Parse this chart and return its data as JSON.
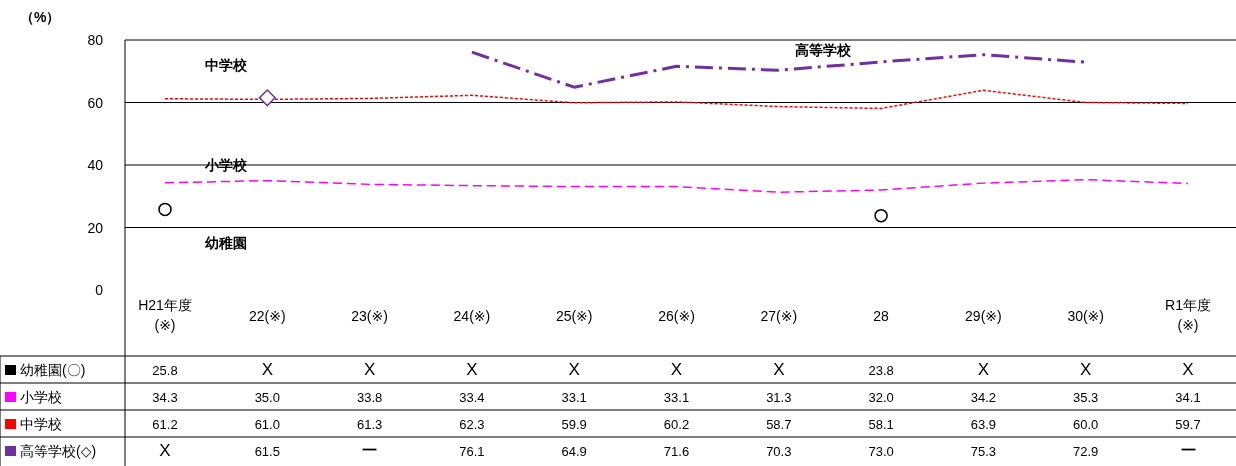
{
  "chart_data": {
    "type": "line",
    "ylabel": "（%）",
    "categories": [
      "H21年度\n(※)",
      "22(※)",
      "23(※)",
      "24(※)",
      "25(※)",
      "26(※)",
      "27(※)",
      "28",
      "29(※)",
      "30(※)",
      "R1年度\n(※)"
    ],
    "ylim": [
      0,
      80
    ],
    "yticks": [
      0,
      20,
      40,
      60,
      80
    ],
    "grid": "y",
    "legend": "bottom left",
    "series": [
      {
        "name": "幼稚園(〇)",
        "type": "scatter",
        "marker": "circle",
        "color": "#000000",
        "values": [
          25.8,
          null,
          null,
          null,
          null,
          null,
          null,
          23.8,
          null,
          null,
          null
        ],
        "value_labels": [
          "25.8",
          "X",
          "X",
          "X",
          "X",
          "X",
          "X",
          "23.8",
          "X",
          "X",
          "X"
        ]
      },
      {
        "name": "小学校",
        "line_style": "dashed",
        "color": "#ff00ff",
        "values": [
          34.3,
          35.0,
          33.8,
          33.4,
          33.1,
          33.1,
          31.3,
          32.0,
          34.2,
          35.3,
          34.1
        ],
        "value_labels": [
          "34.3",
          "35.0",
          "33.8",
          "33.4",
          "33.1",
          "33.1",
          "31.3",
          "32.0",
          "34.2",
          "35.3",
          "34.1"
        ]
      },
      {
        "name": "中学校",
        "line_style": "dotted",
        "color": "#ff0000",
        "values": [
          61.2,
          61.0,
          61.3,
          62.3,
          59.9,
          60.2,
          58.7,
          58.1,
          63.9,
          60.0,
          59.7
        ],
        "value_labels": [
          "61.2",
          "61.0",
          "61.3",
          "62.3",
          "59.9",
          "60.2",
          "58.7",
          "58.1",
          "63.9",
          "60.0",
          "59.7"
        ]
      },
      {
        "name": "高等学校(◇)",
        "line_style": "dashed",
        "color": "#7030a0",
        "values": [
          null,
          61.5,
          null,
          76.1,
          64.9,
          71.6,
          70.3,
          73.0,
          75.3,
          72.9,
          null
        ],
        "value_labels": [
          "X",
          "61.5",
          "ー",
          "76.1",
          "64.9",
          "71.6",
          "70.3",
          "73.0",
          "75.3",
          "72.9",
          "ー"
        ]
      }
    ],
    "annotations": [
      "中学校",
      "高等学校",
      "小学校",
      "幼稚園"
    ]
  }
}
